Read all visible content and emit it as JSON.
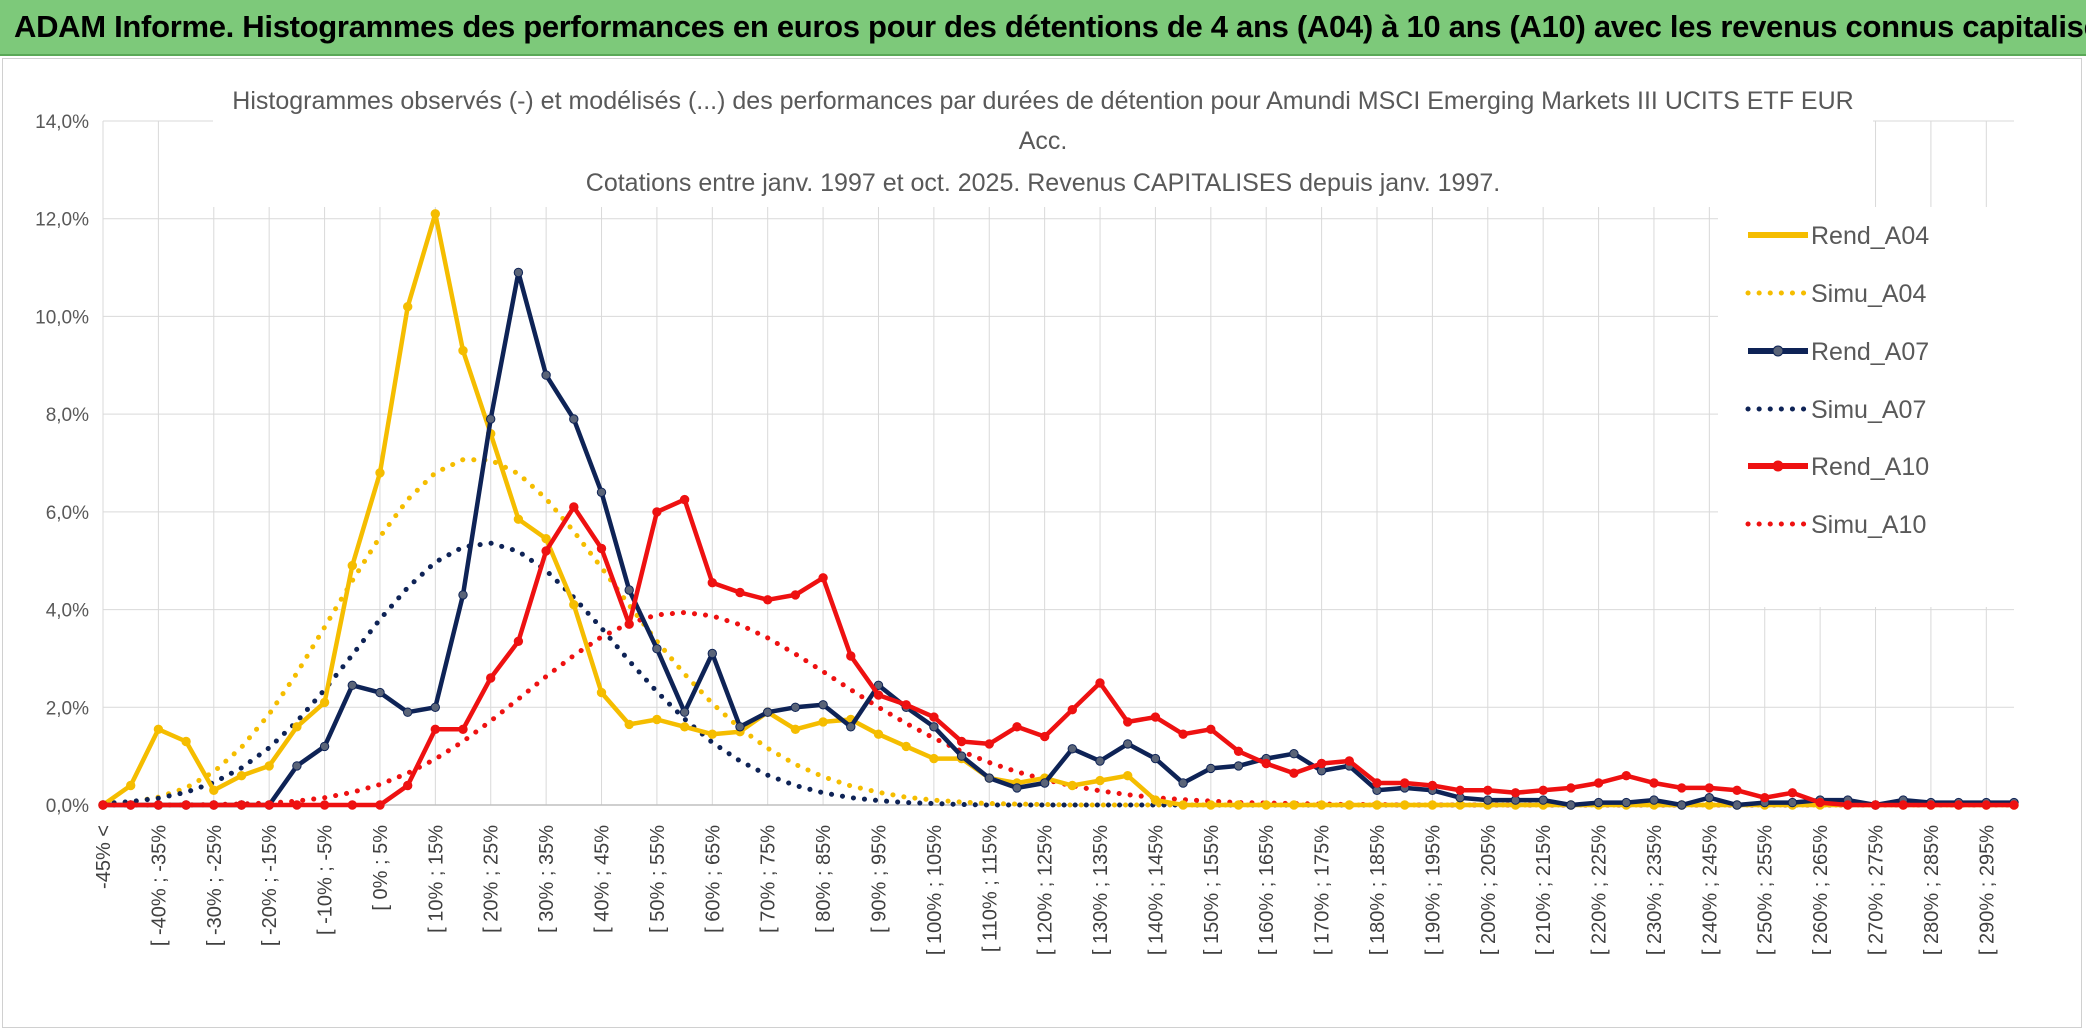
{
  "banner": {
    "title": "ADAM Informe. Histogrammes des performances en euros pour des détentions de 4 ans (A04) à 10 ans (A10) avec les revenus connus capitalisés"
  },
  "chart_data": {
    "type": "line",
    "title": [
      "Histogrammes observés (-) et modélisés (...) des performances par durées de détention pour Amundi MSCI Emerging Markets III UCITS ETF EUR",
      "Acc.",
      "Cotations entre janv. 1997 et oct. 2025. Revenus CAPITALISES depuis janv. 1997."
    ],
    "xlabel": "",
    "ylabel": "",
    "ylim": [
      0,
      14
    ],
    "y_unit": "%",
    "yticks": [
      "0,0%",
      "2,0%",
      "4,0%",
      "6,0%",
      "8,0%",
      "10,0%",
      "12,0%",
      "14,0%"
    ],
    "grid": true,
    "legend_position": "right",
    "x_tick_labels": [
      "-45% <",
      "[ -40% ; -35%",
      "[ -30% ; -25%",
      "[ -20% ; -15%",
      "[ -10% ; -5%",
      "[ 0% ; 5%",
      "[ 10% ; 15%",
      "[ 20% ; 25%",
      "[ 30% ; 35%",
      "[ 40% ; 45%",
      "[ 50% ; 55%",
      "[ 60% ; 65%",
      "[ 70% ; 75%",
      "[ 80% ; 85%",
      "[ 90% ; 95%",
      "[ 100% ; 105%",
      "[ 110% ; 115%",
      "[ 120% ; 125%",
      "[ 130% ; 135%",
      "[ 140% ; 145%",
      "[ 150% ; 155%",
      "[ 160% ; 165%",
      "[ 170% ; 175%",
      "[ 180% ; 185%",
      "[ 190% ; 195%",
      "[ 200% ; 205%",
      "[ 210% ; 215%",
      "[ 220% ; 225%",
      "[ 230% ; 235%",
      "[ 240% ; 245%",
      "[ 250% ; 255%",
      "[ 260% ; 265%",
      "[ 270% ; 275%",
      "[ 280% ; 285%",
      "[ 290% ; 295%"
    ],
    "series": [
      {
        "name": "Rend_A04",
        "style": "solid",
        "color": "#f5bd00",
        "values": [
          0.0,
          0.4,
          1.55,
          1.3,
          0.3,
          0.6,
          0.8,
          1.6,
          2.1,
          4.9,
          6.8,
          10.2,
          12.1,
          9.3,
          7.6,
          5.85,
          5.45,
          4.1,
          2.3,
          1.65,
          1.75,
          1.6,
          1.45,
          1.5,
          1.9,
          1.55,
          1.7,
          1.75,
          1.45,
          1.2,
          0.95,
          0.95,
          0.55,
          0.45,
          0.55,
          0.4,
          0.5,
          0.6,
          0.1,
          0.0,
          0.0,
          0.0,
          0.0,
          0.0,
          0.0,
          0.0,
          0.0,
          0.0,
          0.0,
          0.0,
          0.0,
          0.0,
          0.0,
          0.0,
          0.0,
          0.0,
          0.0,
          0.0,
          0.0,
          0.0,
          0.0,
          0.0,
          0.0,
          0.0,
          0.0,
          0.0,
          0.0,
          0.0,
          0.0,
          0.0
        ]
      },
      {
        "name": "Simu_A04",
        "style": "dotted",
        "color": "#f5bd00",
        "values": [
          0.02,
          0.06,
          0.16,
          0.35,
          0.68,
          1.18,
          1.86,
          2.7,
          3.64,
          4.59,
          5.49,
          6.25,
          6.8,
          7.07,
          7.06,
          6.78,
          6.27,
          5.6,
          4.86,
          4.09,
          3.35,
          2.68,
          2.08,
          1.57,
          1.16,
          0.83,
          0.58,
          0.39,
          0.26,
          0.16,
          0.1,
          0.06,
          0.03,
          0.02,
          0.01,
          0.0,
          0.0,
          0.0,
          0.0,
          0.0,
          0.0,
          0.0,
          0.0,
          0.0,
          0.0,
          0.0,
          0.0,
          0.0,
          0.0,
          0.0,
          0.0,
          0.0,
          0.0,
          0.0,
          0.0,
          0.0,
          0.0,
          0.0,
          0.0,
          0.0,
          0.0,
          0.0,
          0.0,
          0.0,
          0.0,
          0.0,
          0.0,
          0.0,
          0.0,
          0.0
        ]
      },
      {
        "name": "Rend_A07",
        "style": "solid",
        "color": "#0e2356",
        "values": [
          0.0,
          0.0,
          0.0,
          0.0,
          0.0,
          0.0,
          0.0,
          0.8,
          1.2,
          2.45,
          2.3,
          1.9,
          2.0,
          4.3,
          7.9,
          10.9,
          8.8,
          7.9,
          6.4,
          4.4,
          3.2,
          1.9,
          3.1,
          1.6,
          1.9,
          2.0,
          2.05,
          1.6,
          2.45,
          2.0,
          1.6,
          1.0,
          0.55,
          0.35,
          0.45,
          1.15,
          0.9,
          1.25,
          0.95,
          0.45,
          0.75,
          0.8,
          0.95,
          1.05,
          0.7,
          0.8,
          0.3,
          0.35,
          0.3,
          0.15,
          0.1,
          0.1,
          0.1,
          0.0,
          0.05,
          0.05,
          0.1,
          0.0,
          0.15,
          0.0,
          0.05,
          0.05,
          0.1,
          0.1,
          0.0,
          0.1,
          0.05,
          0.05,
          0.05,
          0.05
        ]
      },
      {
        "name": "Simu_A07",
        "style": "dotted",
        "color": "#0e2356",
        "values": [
          0.03,
          0.07,
          0.14,
          0.26,
          0.46,
          0.76,
          1.17,
          1.71,
          2.36,
          3.07,
          3.8,
          4.45,
          4.97,
          5.28,
          5.36,
          5.19,
          4.8,
          4.25,
          3.62,
          2.95,
          2.32,
          1.76,
          1.28,
          0.9,
          0.61,
          0.4,
          0.25,
          0.15,
          0.09,
          0.05,
          0.03,
          0.01,
          0.0,
          0.0,
          0.0,
          0.0,
          0.0,
          0.0,
          0.0,
          0.0,
          0.0,
          0.0,
          0.0,
          0.0,
          0.0,
          0.0,
          0.0,
          0.0,
          0.0,
          0.0,
          0.0,
          0.0,
          0.0,
          0.0,
          0.0,
          0.0,
          0.0,
          0.0,
          0.0,
          0.0,
          0.0,
          0.0,
          0.0,
          0.0,
          0.0,
          0.0,
          0.0,
          0.0,
          0.0,
          0.0
        ]
      },
      {
        "name": "Rend_A10",
        "style": "solid",
        "color": "#ee1111",
        "values": [
          0.0,
          0.0,
          0.0,
          0.0,
          0.0,
          0.0,
          0.0,
          0.0,
          0.0,
          0.0,
          0.0,
          0.4,
          1.55,
          1.55,
          2.6,
          3.35,
          5.2,
          6.1,
          5.25,
          3.7,
          6.0,
          6.25,
          4.55,
          4.35,
          4.2,
          4.3,
          4.65,
          3.05,
          2.25,
          2.05,
          1.8,
          1.3,
          1.25,
          1.6,
          1.4,
          1.95,
          2.5,
          1.7,
          1.8,
          1.45,
          1.55,
          1.1,
          0.85,
          0.65,
          0.85,
          0.9,
          0.45,
          0.45,
          0.4,
          0.3,
          0.3,
          0.25,
          0.3,
          0.35,
          0.45,
          0.6,
          0.45,
          0.35,
          0.35,
          0.3,
          0.15,
          0.25,
          0.05,
          0.0,
          0.0,
          0.0,
          0.0,
          0.0,
          0.0,
          0.0
        ]
      },
      {
        "name": "Simu_A10",
        "style": "dotted",
        "color": "#ee1111",
        "values": [
          0.0,
          0.0,
          0.0,
          0.0,
          0.01,
          0.02,
          0.04,
          0.08,
          0.15,
          0.26,
          0.42,
          0.65,
          0.94,
          1.3,
          1.72,
          2.17,
          2.63,
          3.06,
          3.44,
          3.72,
          3.89,
          3.94,
          3.87,
          3.69,
          3.42,
          3.09,
          2.73,
          2.36,
          2.0,
          1.67,
          1.37,
          1.1,
          0.87,
          0.68,
          0.52,
          0.39,
          0.29,
          0.21,
          0.15,
          0.11,
          0.08,
          0.05,
          0.04,
          0.03,
          0.02,
          0.01,
          0.01,
          0.0,
          0.0,
          0.0,
          0.0,
          0.0,
          0.0,
          0.0,
          0.0,
          0.0,
          0.0,
          0.0,
          0.0,
          0.0,
          0.0,
          0.0,
          0.0,
          0.0,
          0.0,
          0.0,
          0.0,
          0.0,
          0.0,
          0.0
        ]
      }
    ]
  }
}
